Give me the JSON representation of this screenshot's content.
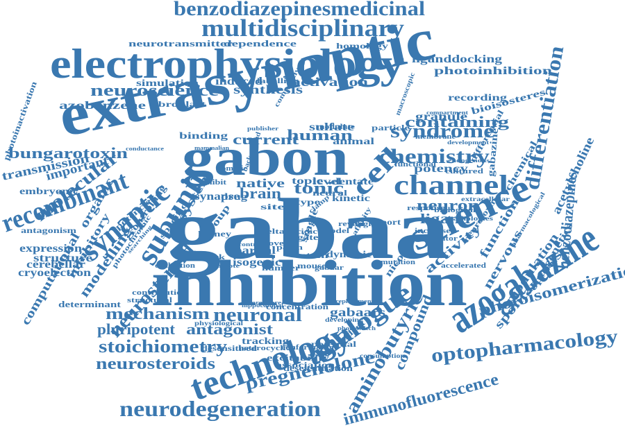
{
  "color": "#3a78b0",
  "words": [
    {
      "id": "gabaa",
      "text": "gabaa"
    },
    {
      "id": "inhibition",
      "text": "inhibition"
    },
    {
      "id": "extrasynaptic",
      "text": "extrasynaptic"
    },
    {
      "id": "electrophysiology",
      "text": "electrophysiology"
    },
    {
      "id": "gabon",
      "text": "gabon"
    },
    {
      "id": "azogabazine",
      "text": "azogabazine"
    },
    {
      "id": "technology",
      "text": "technology"
    },
    {
      "id": "science",
      "text": "science"
    },
    {
      "id": "multidisciplinary",
      "text": "multidisciplinary"
    },
    {
      "id": "benzodiazepinesmedicinal",
      "text": "benzodiazepinesmedicinal"
    },
    {
      "id": "subunit",
      "text": "subunit"
    },
    {
      "id": "synaptic",
      "text": "synaptic"
    },
    {
      "id": "channel",
      "text": "channel"
    },
    {
      "id": "recombinant",
      "text": "recombinant"
    },
    {
      "id": "neurodegeneration",
      "text": "neurodegeneration"
    },
    {
      "id": "optopharmacology",
      "text": "optopharmacology"
    },
    {
      "id": "analogue",
      "text": "analogue"
    },
    {
      "id": "differentiation",
      "text": "differentiation"
    },
    {
      "id": "chemistry",
      "text": "chemistry"
    },
    {
      "id": "syndrome",
      "text": "syndrome"
    },
    {
      "id": "neuroscience",
      "text": "neuroscience"
    },
    {
      "id": "neurosteroid",
      "text": "neurosteroid"
    },
    {
      "id": "stoichiometry",
      "text": "stoichiometry"
    },
    {
      "id": "neurosteroids",
      "text": "neurosteroids"
    },
    {
      "id": "mechanism",
      "text": "mechanism"
    },
    {
      "id": "neuronal",
      "text": "neuronal"
    },
    {
      "id": "pregnenolone",
      "text": "pregnenolone"
    },
    {
      "id": "aminobutyric",
      "text": "aminobutyric"
    },
    {
      "id": "immunofluorescence",
      "text": "immunofluorescence"
    },
    {
      "id": "photoisomerization",
      "text": "photoisomerization"
    },
    {
      "id": "benzodiazepines",
      "text": "benzodiazepines"
    },
    {
      "id": "acetylcholine",
      "text": "acetylcholine"
    },
    {
      "id": "bungarotoxin",
      "text": "bungarotoxin"
    },
    {
      "id": "containing",
      "text": "containing"
    },
    {
      "id": "human",
      "text": "human"
    },
    {
      "id": "tonic",
      "text": "tonic"
    },
    {
      "id": "current",
      "text": "current"
    },
    {
      "id": "molecular",
      "text": "molecular"
    },
    {
      "id": "activation",
      "text": "activation"
    },
    {
      "id": "synthesis",
      "text": "synthesis"
    },
    {
      "id": "photoinhibition",
      "text": "photoinhibition"
    },
    {
      "id": "liganddocking",
      "text": "liganddocking"
    },
    {
      "id": "neurotransmitter",
      "text": "neurotransmitter"
    },
    {
      "id": "dependence",
      "text": "dependence"
    },
    {
      "id": "homology",
      "text": "homology"
    },
    {
      "id": "azobenzene",
      "text": "azobenzene"
    },
    {
      "id": "simulation",
      "text": "simulation"
    },
    {
      "id": "induced",
      "text": "induced"
    },
    {
      "id": "fibroblast",
      "text": "fibroblast"
    },
    {
      "id": "labelling",
      "text": "labelling"
    },
    {
      "id": "transmission",
      "text": "transmission"
    },
    {
      "id": "important",
      "text": "important"
    },
    {
      "id": "embryonic",
      "text": "embryonic"
    },
    {
      "id": "expression",
      "text": "expression"
    },
    {
      "id": "structure",
      "text": "structure"
    },
    {
      "id": "cerebellar",
      "text": "cerebellar"
    },
    {
      "id": "cryoelectron",
      "text": "cryoelectron"
    },
    {
      "id": "antagonist",
      "text": "antagonist"
    },
    {
      "id": "pluripotent",
      "text": "pluripotent"
    },
    {
      "id": "neuron",
      "text": "neuron"
    },
    {
      "id": "ligand",
      "text": "ligand"
    },
    {
      "id": "potency",
      "text": "potency"
    },
    {
      "id": "activity",
      "text": "activity"
    },
    {
      "id": "modulation",
      "text": "modulation"
    },
    {
      "id": "spontaneous",
      "text": "spontaneous"
    },
    {
      "id": "compound",
      "text": "compound"
    },
    {
      "id": "gabaars",
      "text": "gabaars"
    },
    {
      "id": "brain",
      "text": "brain"
    },
    {
      "id": "native",
      "text": "native"
    },
    {
      "id": "system",
      "text": "system"
    },
    {
      "id": "binding",
      "text": "binding"
    },
    {
      "id": "sulfate",
      "text": "sulfate"
    },
    {
      "id": "animal",
      "text": "animal"
    },
    {
      "id": "granule",
      "text": "granule"
    },
    {
      "id": "recording",
      "text": "recording"
    },
    {
      "id": "bioisosteres",
      "text": "bioisosteres"
    },
    {
      "id": "function",
      "text": "function"
    },
    {
      "id": "nervous",
      "text": "nervous"
    },
    {
      "id": "optogenetics",
      "text": "optogenetics"
    },
    {
      "id": "modelling",
      "text": "modelling"
    },
    {
      "id": "inhibitory",
      "text": "inhibitory"
    },
    {
      "id": "computational",
      "text": "computational"
    },
    {
      "id": "organic",
      "text": "organic"
    },
    {
      "id": "desensitisation",
      "text": "desensitisation"
    },
    {
      "id": "cell",
      "text": "cell"
    },
    {
      "id": "chemical",
      "text": "chemical"
    },
    {
      "id": "gabazine",
      "text": "gabazine"
    },
    {
      "id": "neurotoxin",
      "text": "neurotoxin"
    },
    {
      "id": "nicotinic",
      "text": "nicotinic"
    },
    {
      "id": "mouse",
      "text": "mouse"
    },
    {
      "id": "excitability",
      "text": "excitability"
    },
    {
      "id": "association",
      "text": "association"
    },
    {
      "id": "potential",
      "text": "potential"
    },
    {
      "id": "tracking",
      "text": "tracking"
    },
    {
      "id": "concentration",
      "text": "concentration"
    },
    {
      "id": "determinant",
      "text": "determinant"
    },
    {
      "id": "antagonism",
      "text": "antagonism"
    },
    {
      "id": "controlling",
      "text": "controlling"
    },
    {
      "id": "photoinactivation",
      "text": "photoinactivation"
    },
    {
      "id": "isogenic",
      "text": "isogenic"
    },
    {
      "id": "partial",
      "text": "partial"
    },
    {
      "id": "synapse",
      "text": "synapse"
    },
    {
      "id": "drug",
      "text": "drug"
    },
    {
      "id": "level",
      "text": "level"
    },
    {
      "id": "topic",
      "text": "topic"
    },
    {
      "id": "dentate",
      "text": "dentate"
    },
    {
      "id": "neural",
      "text": "neural"
    },
    {
      "id": "kinetic",
      "text": "kinetic"
    },
    {
      "id": "type",
      "text": "type"
    },
    {
      "id": "site",
      "text": "site"
    },
    {
      "id": "dynamic",
      "text": "dynamic"
    },
    {
      "id": "stem",
      "text": "stem"
    },
    {
      "id": "network",
      "text": "network"
    },
    {
      "id": "kidney",
      "text": "kidney"
    },
    {
      "id": "number",
      "text": "number"
    },
    {
      "id": "gabaar",
      "text": "gabaar"
    },
    {
      "id": "response",
      "text": "response"
    },
    {
      "id": "increased",
      "text": "increased"
    },
    {
      "id": "modulator",
      "text": "modulator"
    },
    {
      "id": "accelerated",
      "text": "accelerated"
    },
    {
      "id": "cultured",
      "text": "cultured"
    },
    {
      "id": "differential",
      "text": "differential"
    },
    {
      "id": "dependent",
      "text": "dependent"
    },
    {
      "id": "single",
      "text": "single"
    },
    {
      "id": "group",
      "text": "group"
    },
    {
      "id": "specific",
      "text": "specific"
    },
    {
      "id": "potencies",
      "text": "potencies"
    },
    {
      "id": "photochromic",
      "text": "photochromic"
    },
    {
      "id": "structural",
      "text": "structural"
    },
    {
      "id": "contribution",
      "text": "contribution"
    },
    {
      "id": "desensitised",
      "text": "desensitised"
    },
    {
      "id": "heterocyclic",
      "text": "heterocyclic"
    },
    {
      "id": "conformation",
      "text": "conformation"
    },
    {
      "id": "mutation",
      "text": "mutation"
    },
    {
      "id": "gated",
      "text": "gated"
    },
    {
      "id": "patch",
      "text": "patch"
    },
    {
      "id": "report",
      "text": "report"
    },
    {
      "id": "membrane",
      "text": "membrane"
    },
    {
      "id": "particle",
      "text": "particle"
    },
    {
      "id": "modulate",
      "text": "modulate"
    },
    {
      "id": "competitive",
      "text": "competitive"
    },
    {
      "id": "functional",
      "text": "functional"
    },
    {
      "id": "biological",
      "text": "biological"
    },
    {
      "id": "extracellular",
      "text": "extracellular"
    },
    {
      "id": "pathologies",
      "text": "pathologies"
    },
    {
      "id": "development",
      "text": "development"
    },
    {
      "id": "compartment",
      "text": "compartment"
    },
    {
      "id": "macroscopic",
      "text": "macroscopic"
    },
    {
      "id": "endogenous",
      "text": "endogenous"
    },
    {
      "id": "evaluation",
      "text": "evaluation"
    },
    {
      "id": "physiological",
      "text": "physiological"
    },
    {
      "id": "hippocampal",
      "text": "hippocampal"
    },
    {
      "id": "replacement",
      "text": "replacement"
    },
    {
      "id": "consumption",
      "text": "consumption"
    },
    {
      "id": "developing",
      "text": "developing"
    },
    {
      "id": "background",
      "text": "background"
    },
    {
      "id": "somatic",
      "text": "somatic"
    },
    {
      "id": "inhibit",
      "text": "inhibit"
    },
    {
      "id": "publisher",
      "text": "publisher"
    },
    {
      "id": "mammalian",
      "text": "mammalian"
    },
    {
      "id": "conductance",
      "text": "conductance"
    },
    {
      "id": "higher",
      "text": "higher"
    },
    {
      "id": "reveal",
      "text": "reveal"
    },
    {
      "id": "acidic",
      "text": "acidic"
    },
    {
      "id": "model",
      "text": "model"
    },
    {
      "id": "delta",
      "text": "delta"
    },
    {
      "id": "novel",
      "text": "novel"
    },
    {
      "id": "control",
      "text": "control"
    },
    {
      "id": "promote",
      "text": "promote"
    },
    {
      "id": "fluorophore",
      "text": "fluorophore"
    },
    {
      "id": "photoswitch",
      "text": "photoswitch"
    },
    {
      "id": "pharmacological",
      "text": "pharmacological"
    },
    {
      "id": "searching",
      "text": "searching"
    },
    {
      "id": "clamp",
      "text": "clamp"
    },
    {
      "id": "affinity",
      "text": "affinity"
    }
  ]
}
